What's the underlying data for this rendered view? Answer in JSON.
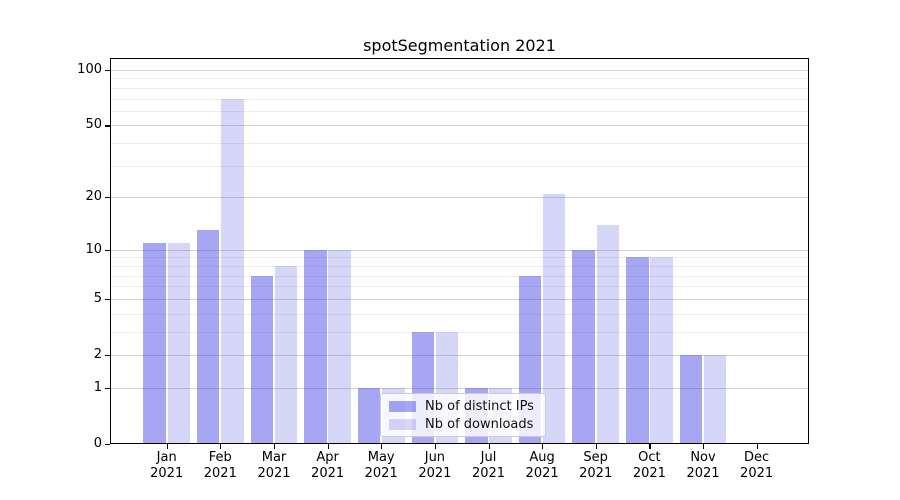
{
  "title": "spotSegmentation 2021",
  "colors": {
    "ips_bar": "rgba(85,85,230,0.52)",
    "downloads_bar": "rgba(85,85,230,0.24)",
    "ips_blended_hex": "#a6a6ee",
    "downloads_blended_hex": "#d8d8f8",
    "grid_major": "#d2d2d2",
    "grid_minor": "#ededed",
    "axis": "#000000",
    "legend_border": "#cccccc"
  },
  "legend": {
    "items": [
      {
        "label": "Nb of distinct IPs",
        "series": "ips"
      },
      {
        "label": "Nb of downloads",
        "series": "downloads"
      }
    ]
  },
  "chart_data": {
    "type": "bar",
    "title": "spotSegmentation 2021",
    "categories": [
      "Jan",
      "Feb",
      "Mar",
      "Apr",
      "May",
      "Jun",
      "Jul",
      "Aug",
      "Sep",
      "Oct",
      "Nov",
      "Dec"
    ],
    "year": "2021",
    "x_tick_labels": [
      "Jan 2021",
      "Feb 2021",
      "Mar 2021",
      "Apr 2021",
      "May 2021",
      "Jun 2021",
      "Jul 2021",
      "Aug 2021",
      "Sep 2021",
      "Oct 2021",
      "Nov 2021",
      "Dec 2021"
    ],
    "series": [
      {
        "name": "Nb of distinct IPs",
        "values": [
          11,
          13,
          7,
          10,
          1,
          3,
          1,
          7,
          10,
          9,
          2,
          0
        ]
      },
      {
        "name": "Nb of downloads",
        "values": [
          11,
          70,
          8,
          10,
          1,
          3,
          1,
          21,
          14,
          9,
          2,
          0
        ]
      }
    ],
    "y_scale": "log10(value+1)",
    "y_ticks": [
      0,
      1,
      2,
      5,
      10,
      20,
      50,
      100
    ],
    "y_minor_ticks": [
      3,
      4,
      6,
      7,
      8,
      9,
      30,
      40,
      60,
      70,
      80,
      90
    ],
    "ylim": [
      0,
      113
    ],
    "grid": "horizontal",
    "legend_position": "lower-center-inside"
  }
}
